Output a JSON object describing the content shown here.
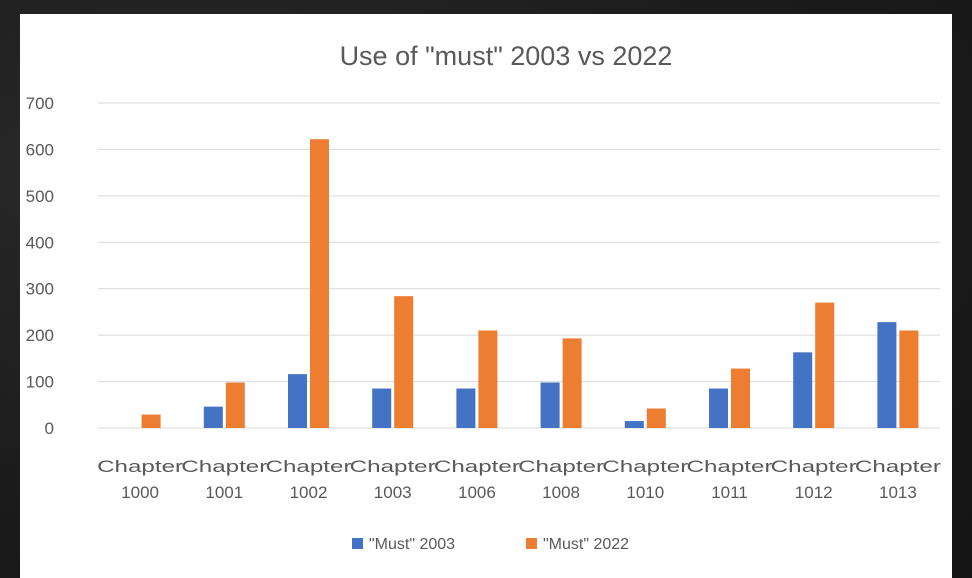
{
  "chart_data": {
    "type": "bar",
    "title": "Use of \"must\" 2003 vs 2022",
    "xlabel": "",
    "ylabel": "",
    "ylim": [
      0,
      700
    ],
    "yticks": [
      0,
      100,
      200,
      300,
      400,
      500,
      600,
      700
    ],
    "grid": true,
    "legend_position": "bottom",
    "categories": [
      [
        "Chapter",
        "1000"
      ],
      [
        "Chapter",
        "1001"
      ],
      [
        "Chapter",
        "1002"
      ],
      [
        "Chapter",
        "1003"
      ],
      [
        "Chapter",
        "1006"
      ],
      [
        "Chapter",
        "1008"
      ],
      [
        "Chapter",
        "1010"
      ],
      [
        "Chapter",
        "1011"
      ],
      [
        "Chapter",
        "1012"
      ],
      [
        "Chapter",
        "1013"
      ]
    ],
    "series": [
      {
        "name": "\"Must\" 2003",
        "color": "#4472c4",
        "values": [
          0,
          46,
          116,
          85,
          85,
          98,
          15,
          85,
          163,
          228
        ]
      },
      {
        "name": "\"Must\" 2022",
        "color": "#ed7d31",
        "values": [
          29,
          98,
          622,
          284,
          210,
          193,
          42,
          128,
          270,
          210
        ]
      }
    ]
  }
}
